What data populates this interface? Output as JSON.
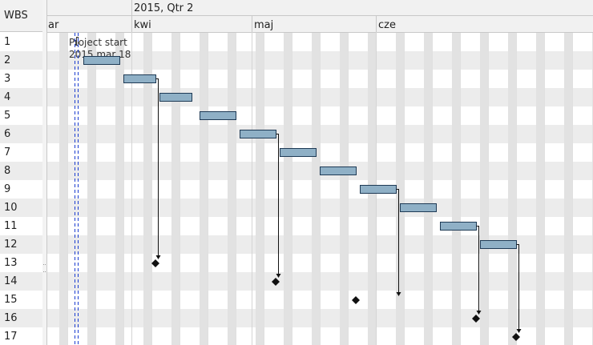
{
  "wbs_header": "WBS",
  "wbs_rows": [
    "1",
    "2",
    "3",
    "4",
    "5",
    "6",
    "7",
    "8",
    "9",
    "10",
    "11",
    "12",
    "13",
    "14",
    "15",
    "16",
    "17"
  ],
  "timeline": {
    "quarter_label": "2015, Qtr 2",
    "months": [
      "ar",
      "kwi",
      "maj",
      "cze"
    ]
  },
  "project_start": {
    "label": "Project start",
    "date": "2015 mar 18"
  },
  "colors": {
    "bar_fill": "#8fb0c6",
    "bar_stroke": "#1e3a55",
    "marker": "#1a3ccf",
    "alt_row": "#ececec",
    "header_bg": "#f1f1f1"
  },
  "chart_data": {
    "type": "gantt",
    "tasks": [
      {
        "wbs": "1",
        "kind": "start"
      },
      {
        "wbs": "2",
        "kind": "task",
        "start": "2015-03-20",
        "end": "2015-03-29"
      },
      {
        "wbs": "3",
        "kind": "task",
        "start": "2015-03-30",
        "end": "2015-04-07"
      },
      {
        "wbs": "4",
        "kind": "task",
        "start": "2015-04-08",
        "end": "2015-04-16"
      },
      {
        "wbs": "5",
        "kind": "task",
        "start": "2015-04-18",
        "end": "2015-04-27"
      },
      {
        "wbs": "6",
        "kind": "task",
        "start": "2015-04-28",
        "end": "2015-05-07"
      },
      {
        "wbs": "7",
        "kind": "task",
        "start": "2015-05-08",
        "end": "2015-05-17"
      },
      {
        "wbs": "8",
        "kind": "task",
        "start": "2015-05-18",
        "end": "2015-05-27"
      },
      {
        "wbs": "9",
        "kind": "task",
        "start": "2015-05-28",
        "end": "2015-06-06"
      },
      {
        "wbs": "10",
        "kind": "task",
        "start": "2015-06-07",
        "end": "2015-06-16"
      },
      {
        "wbs": "11",
        "kind": "task",
        "start": "2015-06-17",
        "end": "2015-06-26"
      },
      {
        "wbs": "12",
        "kind": "task",
        "start": "2015-06-27",
        "end": "2015-07-06"
      },
      {
        "wbs": "13",
        "kind": "milestone",
        "date": "2015-04-07"
      },
      {
        "wbs": "14",
        "kind": "milestone",
        "date": "2015-05-07"
      },
      {
        "wbs": "15",
        "kind": "milestone",
        "date": "2015-05-27"
      },
      {
        "wbs": "16",
        "kind": "milestone",
        "date": "2015-06-26"
      },
      {
        "wbs": "17",
        "kind": "milestone",
        "date": "2015-07-06"
      }
    ],
    "links": [
      {
        "from": "3",
        "to": "13"
      },
      {
        "from": "6",
        "to": "14"
      },
      {
        "from": "9",
        "to": "15"
      },
      {
        "from": "11",
        "to": "16"
      },
      {
        "from": "12",
        "to": "17"
      }
    ]
  }
}
